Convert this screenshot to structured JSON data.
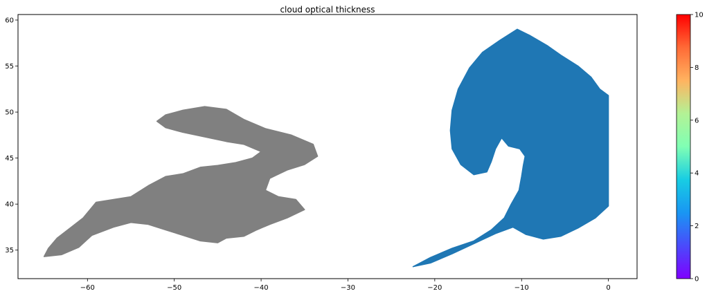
{
  "chart_data": {
    "type": "heatmap",
    "title": "cloud optical thickness",
    "xlabel": "",
    "ylabel": "",
    "xlim": [
      -68,
      3.3
    ],
    "ylim": [
      31.9,
      60.6
    ],
    "xticks": [
      -60,
      -50,
      -40,
      -30,
      -20,
      -10,
      0
    ],
    "yticks": [
      35,
      40,
      45,
      50,
      55,
      60
    ],
    "grid": false,
    "colorbar": {
      "colormap": "rainbow",
      "range": [
        0,
        10
      ],
      "ticks": [
        0,
        2,
        4,
        6,
        8,
        10
      ],
      "position": "right"
    },
    "regions": [
      {
        "fill": "#808080",
        "value_note": "no value",
        "outline": [
          [
            -65,
            34.3
          ],
          [
            -64.5,
            35.2
          ],
          [
            -63.5,
            36.3
          ],
          [
            -62,
            37.4
          ],
          [
            -60.5,
            38.5
          ],
          [
            -59,
            40.2
          ],
          [
            -57,
            40.5
          ],
          [
            -55,
            40.8
          ],
          [
            -53,
            42
          ],
          [
            -51,
            43
          ],
          [
            -49,
            43.3
          ],
          [
            -47,
            44
          ],
          [
            -45,
            44.2
          ],
          [
            -43,
            44.5
          ],
          [
            -41,
            45
          ],
          [
            -40,
            45.7
          ],
          [
            -42,
            46.5
          ],
          [
            -44,
            46.8
          ],
          [
            -46.5,
            47.3
          ],
          [
            -49,
            47.8
          ],
          [
            -51,
            48.3
          ],
          [
            -52,
            49
          ],
          [
            -51,
            49.7
          ],
          [
            -49,
            50.2
          ],
          [
            -46.5,
            50.6
          ],
          [
            -44,
            50.3
          ],
          [
            -42,
            49.2
          ],
          [
            -39.5,
            48.2
          ],
          [
            -36.5,
            47.5
          ],
          [
            -34,
            46.5
          ],
          [
            -33.5,
            45.2
          ],
          [
            -35,
            44.3
          ],
          [
            -37,
            43.7
          ],
          [
            -39,
            42.8
          ],
          [
            -39.5,
            41.5
          ],
          [
            -38,
            40.8
          ],
          [
            -36,
            40.5
          ],
          [
            -35,
            39.4
          ],
          [
            -37,
            38.5
          ],
          [
            -39,
            37.8
          ],
          [
            -40.5,
            37.2
          ],
          [
            -42,
            36.5
          ],
          [
            -44,
            36.3
          ],
          [
            -45,
            35.8
          ],
          [
            -47,
            36
          ],
          [
            -49,
            36.6
          ],
          [
            -51,
            37.2
          ],
          [
            -53,
            37.8
          ],
          [
            -55,
            38
          ],
          [
            -57,
            37.5
          ],
          [
            -59.5,
            36.6
          ],
          [
            -61,
            35.3
          ],
          [
            -63,
            34.5
          ]
        ]
      },
      {
        "fill": "#1f77b4",
        "value_note": "low values",
        "outline": [
          [
            -22.5,
            33.2
          ],
          [
            -20.5,
            34.2
          ],
          [
            -18,
            35.2
          ],
          [
            -15.5,
            36
          ],
          [
            -13.5,
            37.2
          ],
          [
            -12,
            38.5
          ],
          [
            -11.2,
            40
          ],
          [
            -10.3,
            41.5
          ],
          [
            -10,
            43
          ],
          [
            -9.8,
            44.2
          ],
          [
            -9.6,
            45.2
          ],
          [
            -10.2,
            46
          ],
          [
            -11.5,
            46.3
          ],
          [
            -12.3,
            47.2
          ],
          [
            -13,
            46
          ],
          [
            -13.5,
            44.6
          ],
          [
            -14,
            43.5
          ],
          [
            -15.5,
            43.2
          ],
          [
            -17,
            44.3
          ],
          [
            -18,
            46
          ],
          [
            -18.2,
            48
          ],
          [
            -18,
            50.2
          ],
          [
            -17.3,
            52.5
          ],
          [
            -16,
            54.8
          ],
          [
            -14.5,
            56.5
          ],
          [
            -12.5,
            57.8
          ],
          [
            -10.5,
            59
          ],
          [
            -9,
            58.3
          ],
          [
            -7,
            57.2
          ],
          [
            -5.5,
            56.2
          ],
          [
            -3.5,
            55
          ],
          [
            -2,
            53.8
          ],
          [
            -1,
            52.5
          ],
          [
            0,
            51.8
          ],
          [
            0,
            39.8
          ],
          [
            -1.5,
            38.5
          ],
          [
            -3.5,
            37.4
          ],
          [
            -5.5,
            36.5
          ],
          [
            -7.5,
            36.2
          ],
          [
            -9.5,
            36.7
          ],
          [
            -11,
            37.5
          ],
          [
            -13,
            36.8
          ],
          [
            -15.5,
            35.7
          ],
          [
            -18,
            34.6
          ],
          [
            -20.5,
            33.6
          ]
        ]
      }
    ]
  }
}
